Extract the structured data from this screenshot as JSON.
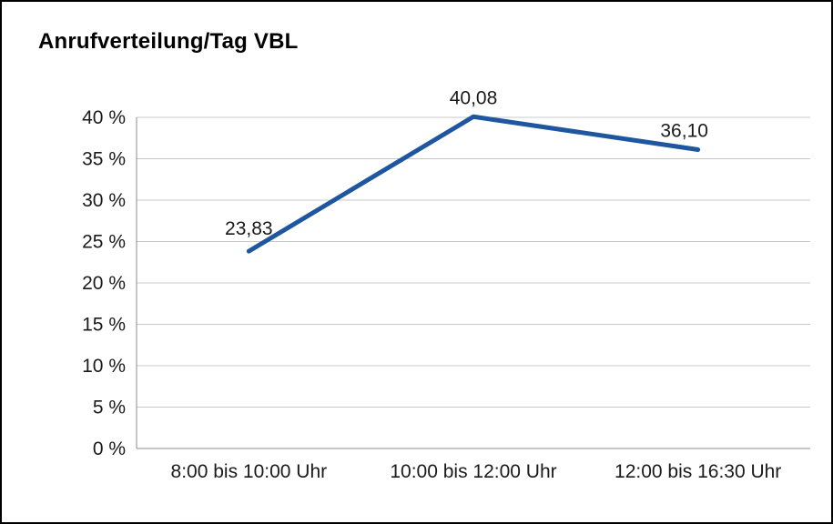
{
  "title": "Anrufverteilung/Tag VBL",
  "colors": {
    "line": "#1e56a0",
    "gridline": "#c9c9c9",
    "axis": "#8c8c8c",
    "text": "#1a1a1a",
    "border": "#000000",
    "background": "#ffffff"
  },
  "chart_data": {
    "type": "line",
    "title": "Anrufverteilung/Tag VBL",
    "categories": [
      "8:00 bis 10:00 Uhr",
      "10:00 bis 12:00 Uhr",
      "12:00 bis 16:30 Uhr"
    ],
    "values": [
      23.83,
      40.08,
      36.1
    ],
    "data_labels": [
      "23,83",
      "40,08",
      "36,10"
    ],
    "xlabel": "",
    "ylabel": "",
    "ylim": [
      0,
      40
    ],
    "ytick_step": 5,
    "ytick_labels": [
      "0 %",
      "5 %",
      "10 %",
      "15 %",
      "20 %",
      "25 %",
      "30 %",
      "35 %",
      "40 %"
    ],
    "grid": true,
    "legend": "none",
    "line_width": 5
  }
}
